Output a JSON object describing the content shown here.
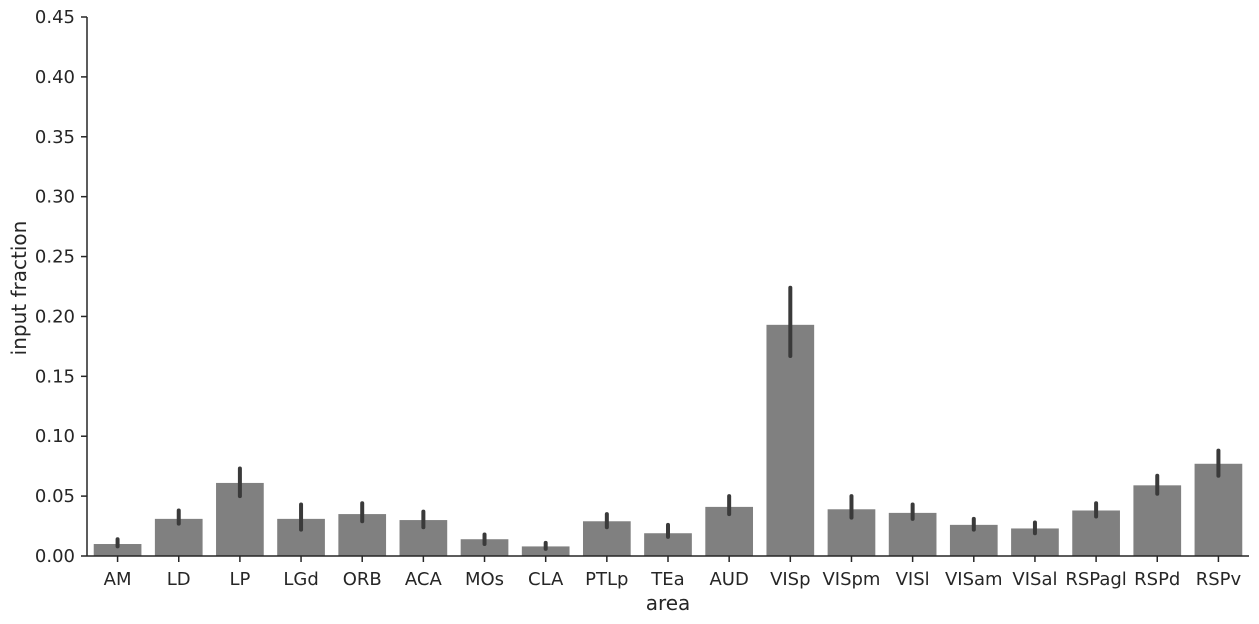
{
  "chart_data": {
    "type": "bar",
    "title": "",
    "xlabel": "area",
    "ylabel": "input fraction",
    "ylim": [
      0,
      0.45
    ],
    "yticks": [
      "0.00",
      "0.05",
      "0.10",
      "0.15",
      "0.20",
      "0.25",
      "0.30",
      "0.35",
      "0.40",
      "0.45"
    ],
    "ytick_values": [
      0,
      0.05,
      0.1,
      0.15,
      0.2,
      0.25,
      0.3,
      0.35,
      0.4,
      0.45
    ],
    "categories": [
      "AM",
      "LD",
      "LP",
      "LGd",
      "ORB",
      "ACA",
      "MOs",
      "CLA",
      "PTLp",
      "TEa",
      "AUD",
      "VISp",
      "VISpm",
      "VISl",
      "VISam",
      "VISal",
      "RSPagl",
      "RSPd",
      "RSPv"
    ],
    "values": [
      0.01,
      0.031,
      0.061,
      0.031,
      0.035,
      0.03,
      0.014,
      0.008,
      0.029,
      0.019,
      0.041,
      0.193,
      0.039,
      0.036,
      0.026,
      0.023,
      0.038,
      0.059,
      0.077
    ],
    "error_low": [
      0.008,
      0.027,
      0.05,
      0.022,
      0.029,
      0.024,
      0.01,
      0.006,
      0.024,
      0.016,
      0.035,
      0.167,
      0.032,
      0.031,
      0.022,
      0.019,
      0.033,
      0.052,
      0.067
    ],
    "error_high": [
      0.014,
      0.038,
      0.073,
      0.043,
      0.044,
      0.037,
      0.018,
      0.011,
      0.035,
      0.026,
      0.05,
      0.224,
      0.05,
      0.043,
      0.031,
      0.028,
      0.044,
      0.067,
      0.088
    ],
    "bar_color": "#808080",
    "error_color": "#3a3a3a",
    "axis_color": "#262626",
    "grid": false,
    "legend": "none"
  }
}
